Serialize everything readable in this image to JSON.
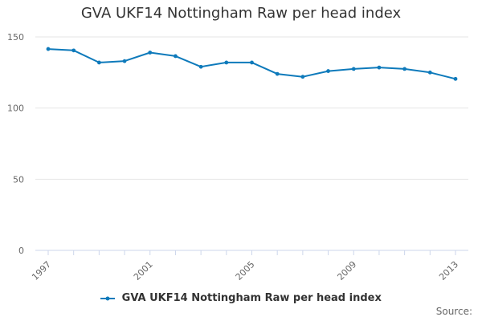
{
  "chart_data": {
    "type": "line",
    "title": "GVA UKF14 Nottingham Raw per head index",
    "xlabel": "",
    "ylabel": "",
    "x": [
      1997,
      1998,
      1999,
      2000,
      2001,
      2002,
      2003,
      2004,
      2005,
      2006,
      2007,
      2008,
      2009,
      2010,
      2011,
      2012,
      2013
    ],
    "x_tick_labels": [
      "1997",
      "2001",
      "2005",
      "2009",
      "2013"
    ],
    "y_ticks": [
      0,
      50,
      100,
      150
    ],
    "ylim": [
      0,
      150
    ],
    "grid": true,
    "legend_position": "bottom",
    "series": [
      {
        "name": "GVA UKF14 Nottingham Raw per head index",
        "color": "#0e7abb",
        "values": [
          141.5,
          140.5,
          132,
          133,
          139,
          136.5,
          129,
          132,
          132,
          124,
          122,
          126,
          127.5,
          128.5,
          127.5,
          125,
          120.5
        ]
      }
    ]
  },
  "source_label": "Source:"
}
